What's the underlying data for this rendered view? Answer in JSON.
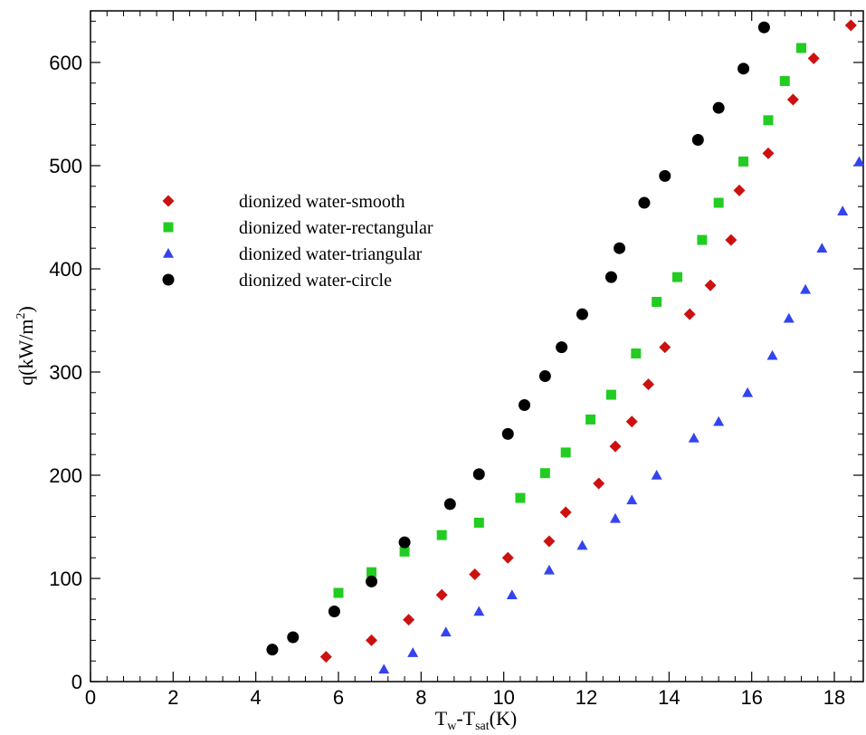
{
  "chart_data": {
    "type": "scatter",
    "title": "",
    "xlabel": {
      "main": "T",
      "sub1": "w",
      "sep": "-T",
      "sub2": "sat",
      "unit": "(K)"
    },
    "ylabel": {
      "main": "q(kW/m",
      "sup": "2",
      "close": ")"
    },
    "xlim": [
      0,
      18.7
    ],
    "ylim": [
      0,
      650
    ],
    "xticks": [
      0,
      2,
      4,
      6,
      8,
      10,
      12,
      14,
      16,
      18
    ],
    "xtick_labels": [
      "0",
      "2",
      "4",
      "6",
      "8",
      "10",
      "12",
      "14",
      "16",
      "18"
    ],
    "yticks": [
      0,
      100,
      200,
      300,
      400,
      500,
      600
    ],
    "ytick_labels": [
      "0",
      "100",
      "200",
      "300",
      "400",
      "500",
      "600"
    ],
    "grid": false,
    "legend_position": "upper-left",
    "series": [
      {
        "name": "dionized water-smooth",
        "marker": "diamond",
        "color": "#cc1111",
        "points": [
          [
            5.7,
            24
          ],
          [
            6.8,
            40
          ],
          [
            7.7,
            60
          ],
          [
            8.5,
            84
          ],
          [
            9.3,
            104
          ],
          [
            10.1,
            120
          ],
          [
            11.1,
            136
          ],
          [
            11.5,
            164
          ],
          [
            12.3,
            192
          ],
          [
            12.7,
            228
          ],
          [
            13.1,
            252
          ],
          [
            13.5,
            288
          ],
          [
            13.9,
            324
          ],
          [
            14.5,
            356
          ],
          [
            15.0,
            384
          ],
          [
            15.5,
            428
          ],
          [
            15.7,
            476
          ],
          [
            16.4,
            512
          ],
          [
            17.0,
            564
          ],
          [
            17.5,
            604
          ],
          [
            18.4,
            636
          ]
        ]
      },
      {
        "name": "dionized water-rectangular",
        "marker": "square",
        "color": "#22cc22",
        "points": [
          [
            6.0,
            86
          ],
          [
            6.8,
            106
          ],
          [
            7.6,
            126
          ],
          [
            8.5,
            142
          ],
          [
            9.4,
            154
          ],
          [
            10.4,
            178
          ],
          [
            11.0,
            202
          ],
          [
            11.5,
            222
          ],
          [
            12.1,
            254
          ],
          [
            12.6,
            278
          ],
          [
            13.2,
            318
          ],
          [
            13.7,
            368
          ],
          [
            14.2,
            392
          ],
          [
            14.8,
            428
          ],
          [
            15.2,
            464
          ],
          [
            15.8,
            504
          ],
          [
            16.4,
            544
          ],
          [
            16.8,
            582
          ],
          [
            17.2,
            614
          ]
        ]
      },
      {
        "name": "dionized water-triangular",
        "marker": "triangle",
        "color": "#3344ee",
        "points": [
          [
            7.1,
            12
          ],
          [
            7.8,
            28
          ],
          [
            8.6,
            48
          ],
          [
            9.4,
            68
          ],
          [
            10.2,
            84
          ],
          [
            11.1,
            108
          ],
          [
            11.9,
            132
          ],
          [
            12.7,
            158
          ],
          [
            13.1,
            176
          ],
          [
            13.7,
            200
          ],
          [
            14.6,
            236
          ],
          [
            15.2,
            252
          ],
          [
            15.9,
            280
          ],
          [
            16.5,
            316
          ],
          [
            16.9,
            352
          ],
          [
            17.3,
            380
          ],
          [
            17.7,
            420
          ],
          [
            18.2,
            456
          ],
          [
            18.6,
            504
          ]
        ]
      },
      {
        "name": "dionized water-circle",
        "marker": "circle",
        "color": "#000000",
        "points": [
          [
            4.4,
            31
          ],
          [
            4.9,
            43
          ],
          [
            5.9,
            68
          ],
          [
            6.8,
            97
          ],
          [
            7.6,
            135
          ],
          [
            8.7,
            172
          ],
          [
            9.4,
            201
          ],
          [
            10.1,
            240
          ],
          [
            10.5,
            268
          ],
          [
            11.0,
            296
          ],
          [
            11.4,
            324
          ],
          [
            11.9,
            356
          ],
          [
            12.6,
            392
          ],
          [
            12.8,
            420
          ],
          [
            13.4,
            464
          ],
          [
            13.9,
            490
          ],
          [
            14.7,
            525
          ],
          [
            15.2,
            556
          ],
          [
            15.8,
            594
          ],
          [
            16.3,
            634
          ]
        ]
      }
    ]
  }
}
